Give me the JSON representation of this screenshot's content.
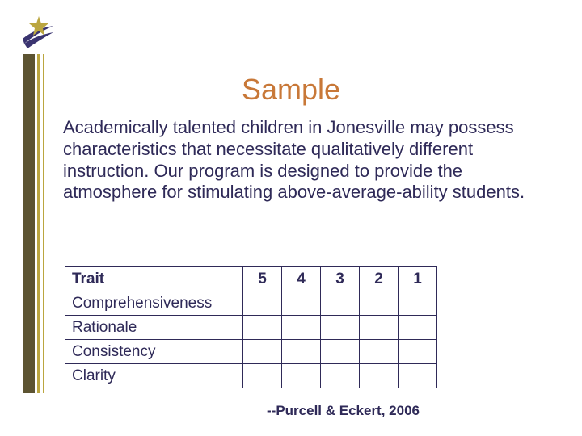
{
  "title": "Sample",
  "title_color": "#c87838",
  "body_text": "Academically talented children in Jonesville may possess characteristics that necessitate qualitatively different instruction. Our program is designed to provide the atmosphere for stimulating above-average-ability students.",
  "body_text_color": "#2f2a58",
  "table": {
    "border_color": "#2f2a58",
    "text_color": "#2f2a58",
    "header_trait": "Trait",
    "score_headers": [
      "5",
      "4",
      "3",
      "2",
      "1"
    ],
    "rows": [
      "Comprehensiveness",
      "Rationale",
      "Consistency",
      "Clarity"
    ]
  },
  "attribution": "--Purcell & Eckert, 2006",
  "attribution_color": "#2f2a58",
  "vbars": [
    {
      "width": 14,
      "color": "#5d5432"
    },
    {
      "width": 3,
      "color": "#ffffff"
    },
    {
      "width": 4,
      "color": "#bba640"
    },
    {
      "width": 3,
      "color": "#ffffff"
    },
    {
      "width": 2,
      "color": "#bba640"
    }
  ],
  "logo": {
    "star_color": "#bba640",
    "swoosh_color": "#3a3470"
  }
}
